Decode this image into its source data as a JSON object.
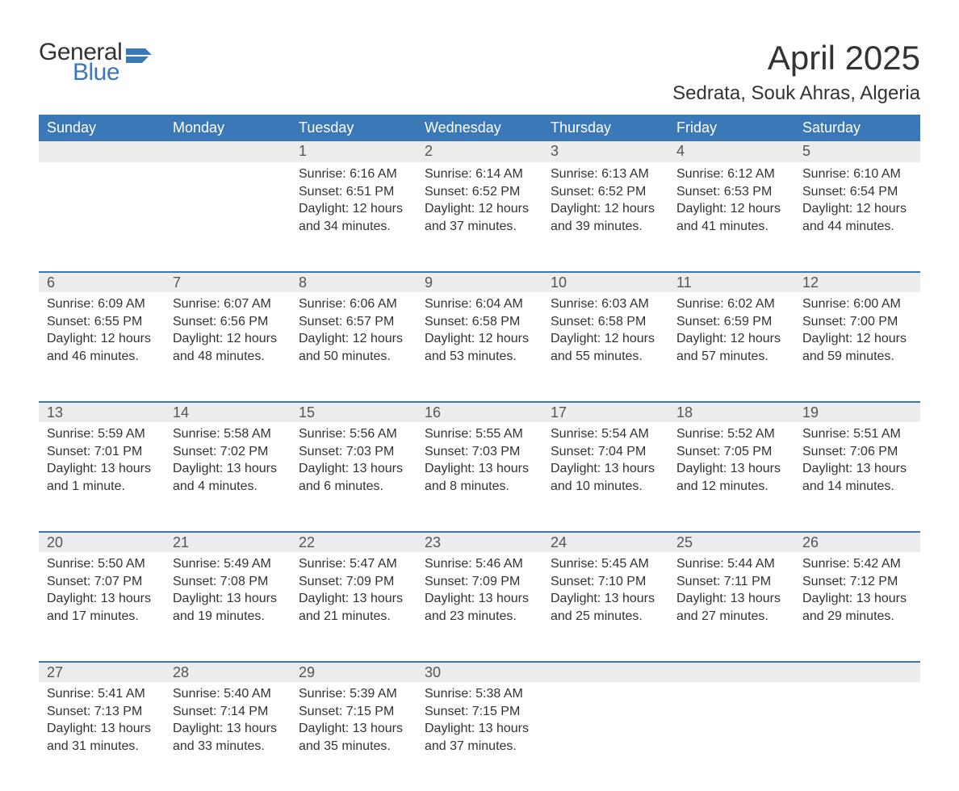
{
  "logo": {
    "general": "General",
    "blue": "Blue"
  },
  "title": "April 2025",
  "location": "Sedrata, Souk Ahras, Algeria",
  "colors": {
    "header_bg": "#3b78b8",
    "header_text": "#ffffff",
    "daynum_bg": "#ececec",
    "daynum_border": "#3b78b8",
    "body_text": "#333333",
    "page_bg": "#ffffff"
  },
  "fonts": {
    "title_size": 42,
    "location_size": 24,
    "th_size": 18,
    "daynum_size": 18,
    "data_size": 16
  },
  "day_headers": [
    "Sunday",
    "Monday",
    "Tuesday",
    "Wednesday",
    "Thursday",
    "Friday",
    "Saturday"
  ],
  "weeks": [
    [
      null,
      null,
      {
        "num": "1",
        "sunrise": "Sunrise: 6:16 AM",
        "sunset": "Sunset: 6:51 PM",
        "daylight": "Daylight: 12 hours and 34 minutes."
      },
      {
        "num": "2",
        "sunrise": "Sunrise: 6:14 AM",
        "sunset": "Sunset: 6:52 PM",
        "daylight": "Daylight: 12 hours and 37 minutes."
      },
      {
        "num": "3",
        "sunrise": "Sunrise: 6:13 AM",
        "sunset": "Sunset: 6:52 PM",
        "daylight": "Daylight: 12 hours and 39 minutes."
      },
      {
        "num": "4",
        "sunrise": "Sunrise: 6:12 AM",
        "sunset": "Sunset: 6:53 PM",
        "daylight": "Daylight: 12 hours and 41 minutes."
      },
      {
        "num": "5",
        "sunrise": "Sunrise: 6:10 AM",
        "sunset": "Sunset: 6:54 PM",
        "daylight": "Daylight: 12 hours and 44 minutes."
      }
    ],
    [
      {
        "num": "6",
        "sunrise": "Sunrise: 6:09 AM",
        "sunset": "Sunset: 6:55 PM",
        "daylight": "Daylight: 12 hours and 46 minutes."
      },
      {
        "num": "7",
        "sunrise": "Sunrise: 6:07 AM",
        "sunset": "Sunset: 6:56 PM",
        "daylight": "Daylight: 12 hours and 48 minutes."
      },
      {
        "num": "8",
        "sunrise": "Sunrise: 6:06 AM",
        "sunset": "Sunset: 6:57 PM",
        "daylight": "Daylight: 12 hours and 50 minutes."
      },
      {
        "num": "9",
        "sunrise": "Sunrise: 6:04 AM",
        "sunset": "Sunset: 6:58 PM",
        "daylight": "Daylight: 12 hours and 53 minutes."
      },
      {
        "num": "10",
        "sunrise": "Sunrise: 6:03 AM",
        "sunset": "Sunset: 6:58 PM",
        "daylight": "Daylight: 12 hours and 55 minutes."
      },
      {
        "num": "11",
        "sunrise": "Sunrise: 6:02 AM",
        "sunset": "Sunset: 6:59 PM",
        "daylight": "Daylight: 12 hours and 57 minutes."
      },
      {
        "num": "12",
        "sunrise": "Sunrise: 6:00 AM",
        "sunset": "Sunset: 7:00 PM",
        "daylight": "Daylight: 12 hours and 59 minutes."
      }
    ],
    [
      {
        "num": "13",
        "sunrise": "Sunrise: 5:59 AM",
        "sunset": "Sunset: 7:01 PM",
        "daylight": "Daylight: 13 hours and 1 minute."
      },
      {
        "num": "14",
        "sunrise": "Sunrise: 5:58 AM",
        "sunset": "Sunset: 7:02 PM",
        "daylight": "Daylight: 13 hours and 4 minutes."
      },
      {
        "num": "15",
        "sunrise": "Sunrise: 5:56 AM",
        "sunset": "Sunset: 7:03 PM",
        "daylight": "Daylight: 13 hours and 6 minutes."
      },
      {
        "num": "16",
        "sunrise": "Sunrise: 5:55 AM",
        "sunset": "Sunset: 7:03 PM",
        "daylight": "Daylight: 13 hours and 8 minutes."
      },
      {
        "num": "17",
        "sunrise": "Sunrise: 5:54 AM",
        "sunset": "Sunset: 7:04 PM",
        "daylight": "Daylight: 13 hours and 10 minutes."
      },
      {
        "num": "18",
        "sunrise": "Sunrise: 5:52 AM",
        "sunset": "Sunset: 7:05 PM",
        "daylight": "Daylight: 13 hours and 12 minutes."
      },
      {
        "num": "19",
        "sunrise": "Sunrise: 5:51 AM",
        "sunset": "Sunset: 7:06 PM",
        "daylight": "Daylight: 13 hours and 14 minutes."
      }
    ],
    [
      {
        "num": "20",
        "sunrise": "Sunrise: 5:50 AM",
        "sunset": "Sunset: 7:07 PM",
        "daylight": "Daylight: 13 hours and 17 minutes."
      },
      {
        "num": "21",
        "sunrise": "Sunrise: 5:49 AM",
        "sunset": "Sunset: 7:08 PM",
        "daylight": "Daylight: 13 hours and 19 minutes."
      },
      {
        "num": "22",
        "sunrise": "Sunrise: 5:47 AM",
        "sunset": "Sunset: 7:09 PM",
        "daylight": "Daylight: 13 hours and 21 minutes."
      },
      {
        "num": "23",
        "sunrise": "Sunrise: 5:46 AM",
        "sunset": "Sunset: 7:09 PM",
        "daylight": "Daylight: 13 hours and 23 minutes."
      },
      {
        "num": "24",
        "sunrise": "Sunrise: 5:45 AM",
        "sunset": "Sunset: 7:10 PM",
        "daylight": "Daylight: 13 hours and 25 minutes."
      },
      {
        "num": "25",
        "sunrise": "Sunrise: 5:44 AM",
        "sunset": "Sunset: 7:11 PM",
        "daylight": "Daylight: 13 hours and 27 minutes."
      },
      {
        "num": "26",
        "sunrise": "Sunrise: 5:42 AM",
        "sunset": "Sunset: 7:12 PM",
        "daylight": "Daylight: 13 hours and 29 minutes."
      }
    ],
    [
      {
        "num": "27",
        "sunrise": "Sunrise: 5:41 AM",
        "sunset": "Sunset: 7:13 PM",
        "daylight": "Daylight: 13 hours and 31 minutes."
      },
      {
        "num": "28",
        "sunrise": "Sunrise: 5:40 AM",
        "sunset": "Sunset: 7:14 PM",
        "daylight": "Daylight: 13 hours and 33 minutes."
      },
      {
        "num": "29",
        "sunrise": "Sunrise: 5:39 AM",
        "sunset": "Sunset: 7:15 PM",
        "daylight": "Daylight: 13 hours and 35 minutes."
      },
      {
        "num": "30",
        "sunrise": "Sunrise: 5:38 AM",
        "sunset": "Sunset: 7:15 PM",
        "daylight": "Daylight: 13 hours and 37 minutes."
      },
      null,
      null,
      null
    ]
  ]
}
